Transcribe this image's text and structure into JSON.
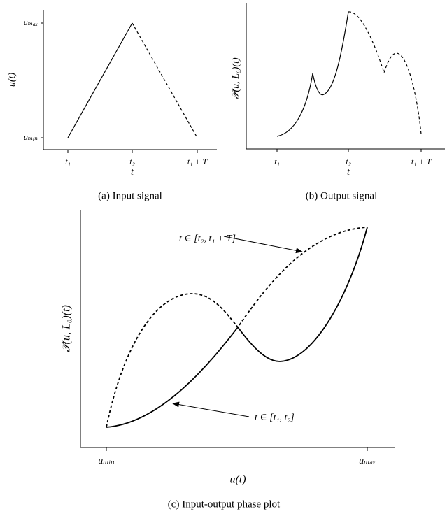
{
  "panel_a": {
    "y_label": "u(t)",
    "y_ticks": [
      "uₘₐₓ",
      "uₘᵢₙ"
    ],
    "x_ticks": [
      "t₁",
      "t₂",
      "t₁ + T"
    ],
    "x_label": "t",
    "caption": "(a) Input signal"
  },
  "panel_b": {
    "y_label": "𝒫(u, L₀)(t)",
    "x_ticks": [
      "t₁",
      "t₂",
      "t₁ + T"
    ],
    "x_label": "t",
    "caption": "(b) Output signal"
  },
  "panel_c": {
    "y_label": "𝒫(u, L₀)(t)",
    "x_ticks": [
      "uₘᵢₙ",
      "uₘₐₓ"
    ],
    "x_label": "u(t)",
    "annotations": [
      "t ∈ [t₂, t₁ + T]",
      "t ∈ [t₁, t₂]"
    ],
    "caption": "(c) Input-output phase plot"
  }
}
